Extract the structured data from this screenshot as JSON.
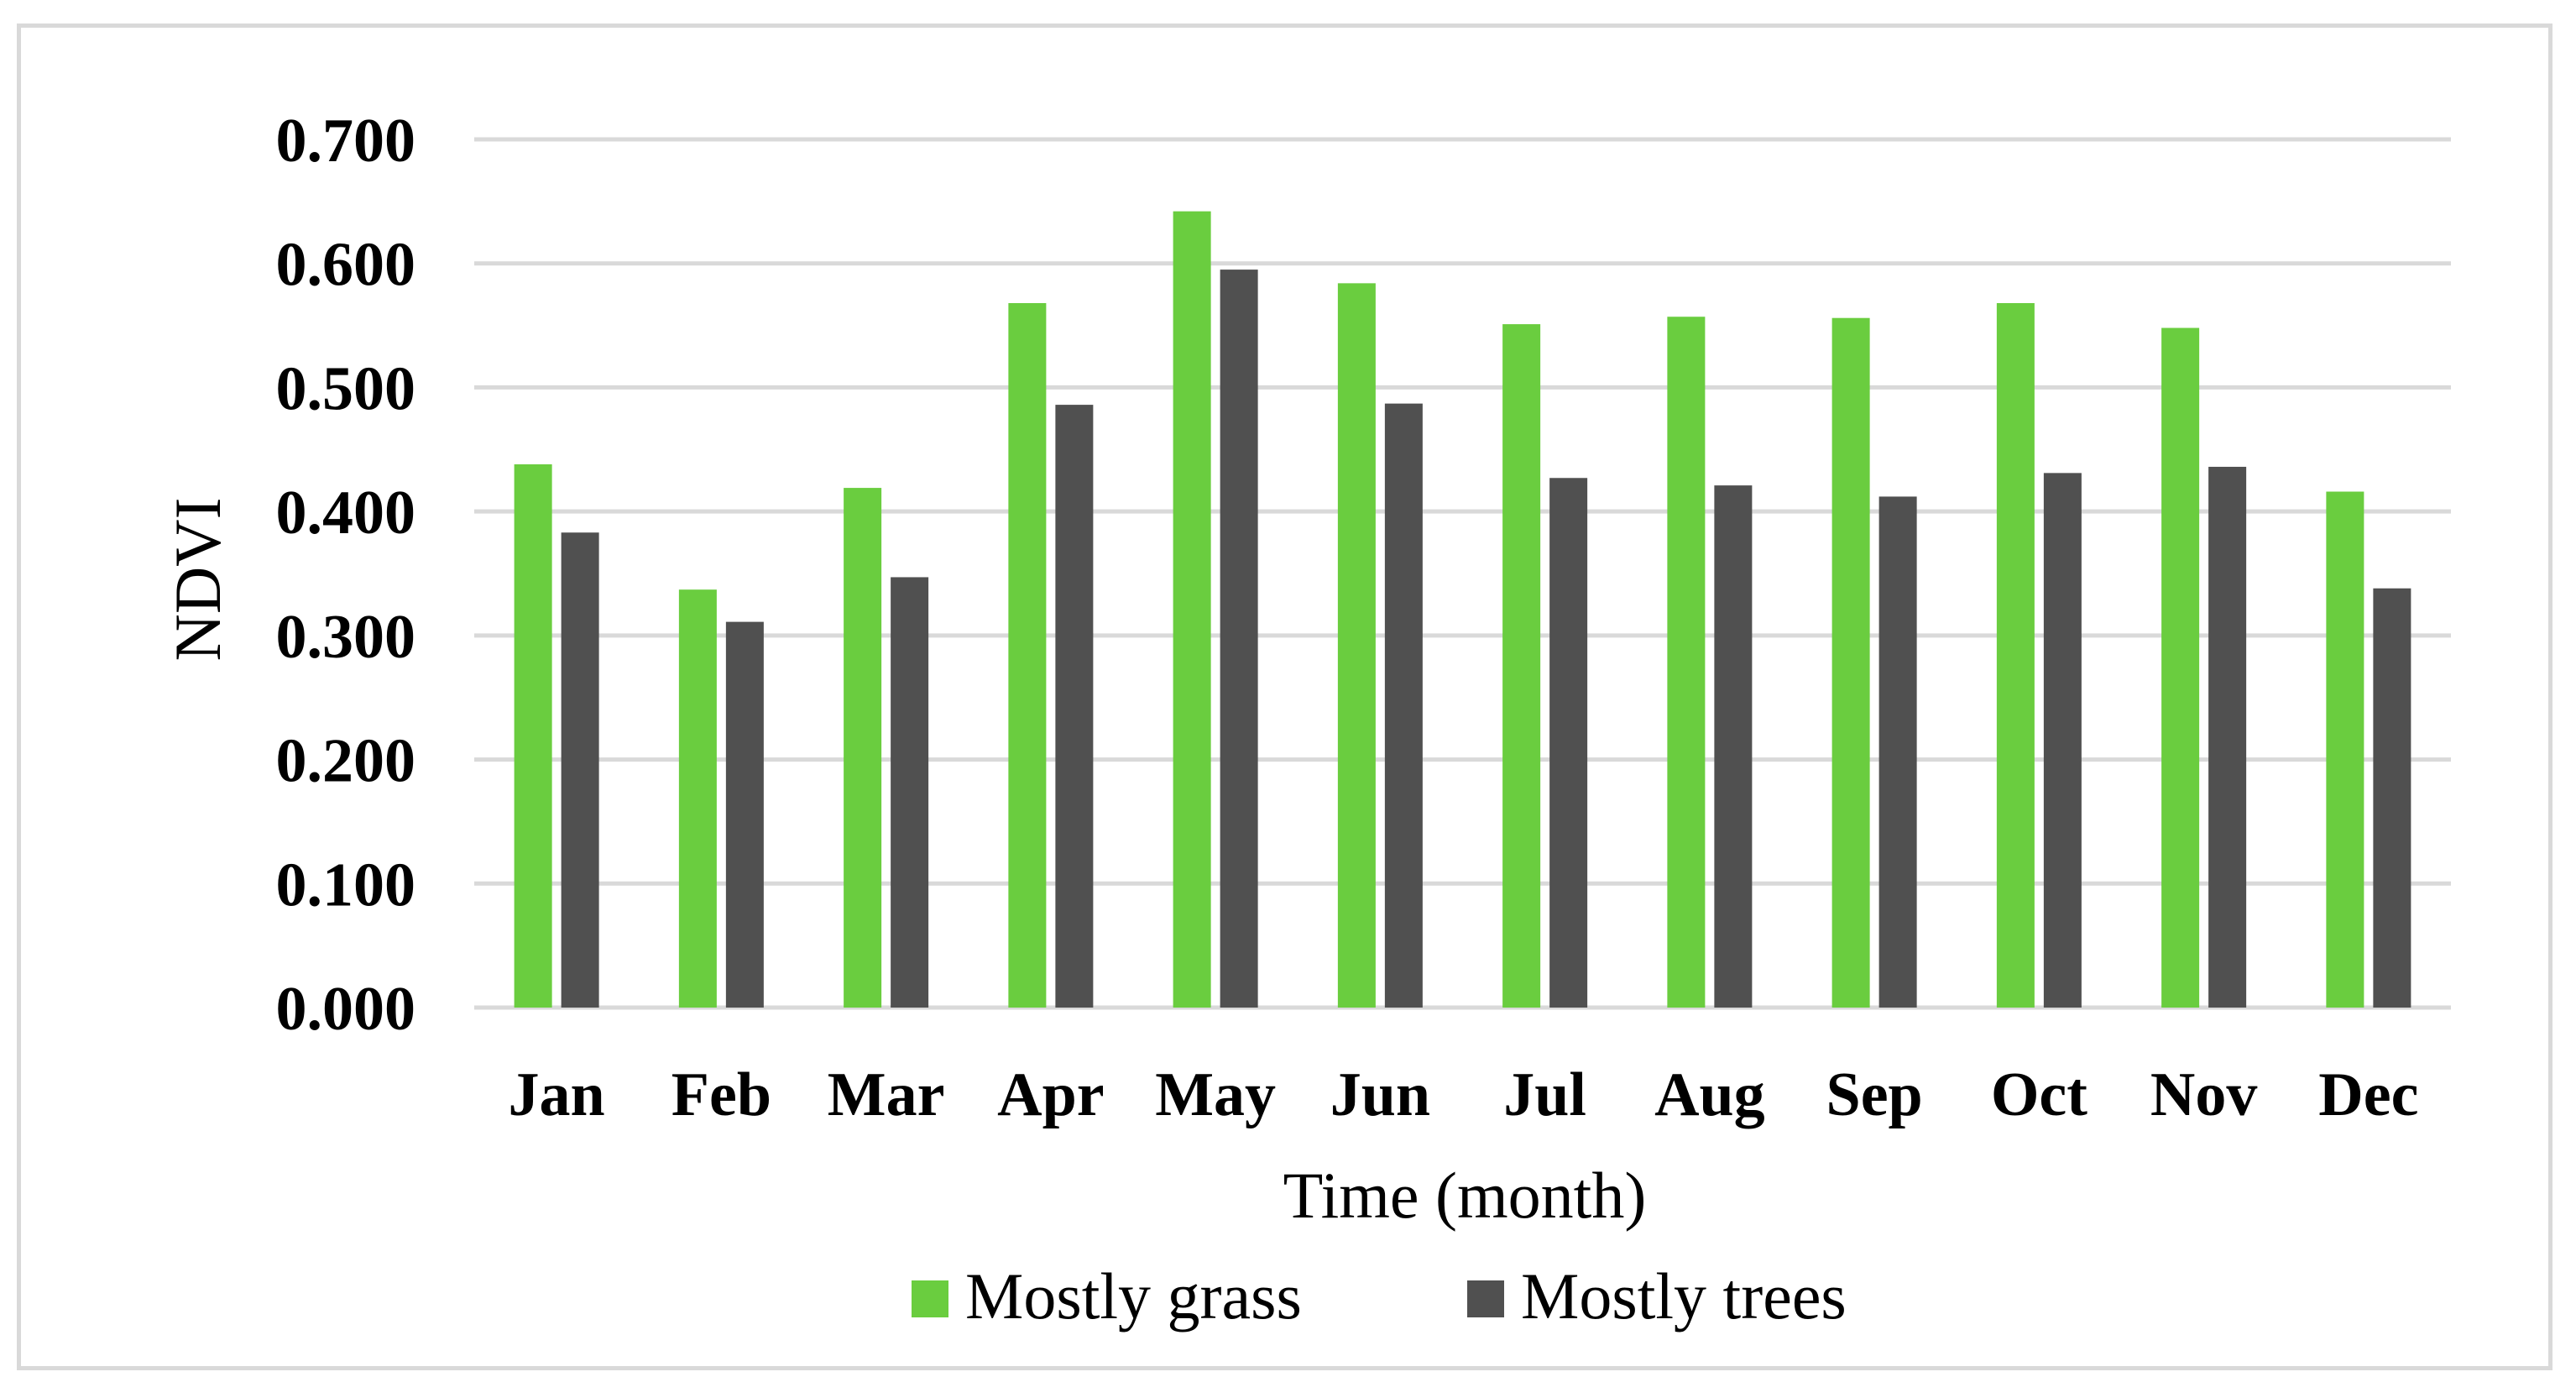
{
  "chart_data": {
    "type": "bar",
    "categories": [
      "Jan",
      "Feb",
      "Mar",
      "Apr",
      "May",
      "Jun",
      "Jul",
      "Aug",
      "Sep",
      "Oct",
      "Nov",
      "Dec"
    ],
    "series": [
      {
        "name": "Mostly grass",
        "color": "#6acd3f",
        "values": [
          0.438,
          0.337,
          0.419,
          0.568,
          0.642,
          0.584,
          0.551,
          0.557,
          0.556,
          0.568,
          0.548,
          0.416
        ]
      },
      {
        "name": "Mostly trees",
        "color": "#505050",
        "values": [
          0.383,
          0.311,
          0.347,
          0.486,
          0.595,
          0.487,
          0.427,
          0.421,
          0.412,
          0.431,
          0.436,
          0.338
        ]
      }
    ],
    "xlabel": "Time (month)",
    "ylabel": "NDVI",
    "ylim": [
      0,
      0.7
    ],
    "yticks": [
      "0.000",
      "0.100",
      "0.200",
      "0.300",
      "0.400",
      "0.500",
      "0.600",
      "0.700"
    ],
    "grid": true,
    "gridColor": "#d9d9d9",
    "legend": "bottom"
  }
}
